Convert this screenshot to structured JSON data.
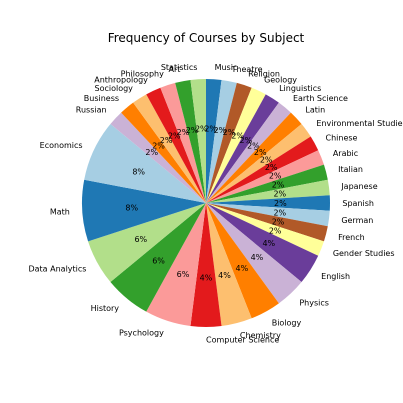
{
  "chart_data": {
    "type": "pie",
    "title": "Frequency of Courses by Subject",
    "slices": [
      {
        "label": "Music",
        "value": 2,
        "pct_label": "2%",
        "color": "#1f78b4"
      },
      {
        "label": "Theatre",
        "value": 2,
        "pct_label": "2%",
        "color": "#a6cee3"
      },
      {
        "label": "Religion",
        "value": 2,
        "pct_label": "2%",
        "color": "#b15928"
      },
      {
        "label": "Geology",
        "value": 2,
        "pct_label": "2%",
        "color": "#ffff99"
      },
      {
        "label": "Linguistics",
        "value": 2,
        "pct_label": "2%",
        "color": "#6a3d9a"
      },
      {
        "label": "Earth Science",
        "value": 2,
        "pct_label": "2%",
        "color": "#cab2d6"
      },
      {
        "label": "Latin",
        "value": 2,
        "pct_label": "2%",
        "color": "#ff7f00"
      },
      {
        "label": "Environmental Studies",
        "value": 2,
        "pct_label": "2%",
        "color": "#fdbf6f"
      },
      {
        "label": "Chinese",
        "value": 2,
        "pct_label": "2%",
        "color": "#e31a1c"
      },
      {
        "label": "Arabic",
        "value": 2,
        "pct_label": "2%",
        "color": "#fb9a99"
      },
      {
        "label": "Italian",
        "value": 2,
        "pct_label": "2%",
        "color": "#33a02c"
      },
      {
        "label": "Japanese",
        "value": 2,
        "pct_label": "2%",
        "color": "#b2df8a"
      },
      {
        "label": "Spanish",
        "value": 2,
        "pct_label": "2%",
        "color": "#1f78b4"
      },
      {
        "label": "German",
        "value": 2,
        "pct_label": "2%",
        "color": "#a6cee3"
      },
      {
        "label": "French",
        "value": 2,
        "pct_label": "2%",
        "color": "#b15928"
      },
      {
        "label": "Gender Studies",
        "value": 2,
        "pct_label": "2%",
        "color": "#ffff99"
      },
      {
        "label": "English",
        "value": 4,
        "pct_label": "4%",
        "color": "#6a3d9a"
      },
      {
        "label": "Physics",
        "value": 4,
        "pct_label": "4%",
        "color": "#cab2d6"
      },
      {
        "label": "Biology",
        "value": 4,
        "pct_label": "4%",
        "color": "#ff7f00"
      },
      {
        "label": "Chemistry",
        "value": 4,
        "pct_label": "4%",
        "color": "#fdbf6f"
      },
      {
        "label": "Computer Science",
        "value": 4,
        "pct_label": "4%",
        "color": "#e31a1c"
      },
      {
        "label": "Psychology",
        "value": 6,
        "pct_label": "6%",
        "color": "#fb9a99"
      },
      {
        "label": "History",
        "value": 6,
        "pct_label": "6%",
        "color": "#33a02c"
      },
      {
        "label": "Data Analytics",
        "value": 6,
        "pct_label": "6%",
        "color": "#b2df8a"
      },
      {
        "label": "Math",
        "value": 8,
        "pct_label": "8%",
        "color": "#1f78b4"
      },
      {
        "label": "Economics",
        "value": 8,
        "pct_label": "8%",
        "color": "#a6cee3"
      },
      {
        "label": "Russian",
        "value": 2,
        "pct_label": "2%",
        "color": "#cab2d6"
      },
      {
        "label": "Business",
        "value": 2,
        "pct_label": "2%",
        "color": "#ff7f00"
      },
      {
        "label": "Sociology",
        "value": 2,
        "pct_label": "2%",
        "color": "#fdbf6f"
      },
      {
        "label": "Anthropology",
        "value": 2,
        "pct_label": "2%",
        "color": "#e31a1c"
      },
      {
        "label": "Philosophy",
        "value": 2,
        "pct_label": "2%",
        "color": "#fb9a99"
      },
      {
        "label": "Art",
        "value": 2,
        "pct_label": "2%",
        "color": "#33a02c"
      },
      {
        "label": "Statistics",
        "value": 2,
        "pct_label": "2%",
        "color": "#b2df8a"
      }
    ],
    "start_angle_deg": 90,
    "direction": "clockwise"
  }
}
